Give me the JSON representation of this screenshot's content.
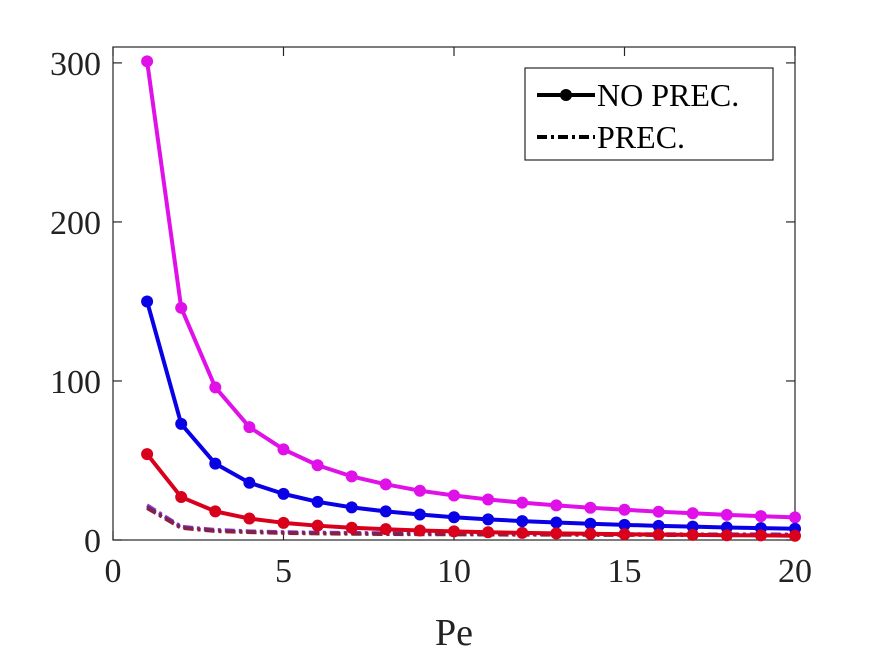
{
  "chart_data": {
    "type": "line",
    "title": "",
    "xlabel": "Pe",
    "ylabel": "",
    "xlim": [
      0,
      20
    ],
    "ylim": [
      0,
      310
    ],
    "xticks": [
      0,
      5,
      10,
      15,
      20
    ],
    "yticks": [
      0,
      100,
      200,
      300
    ],
    "xtick_labels": [
      "0",
      "5",
      "10",
      "15",
      "20"
    ],
    "ytick_labels": [
      "0",
      "100",
      "200",
      "300"
    ],
    "x": [
      1,
      2,
      3,
      4,
      5,
      6,
      7,
      8,
      9,
      10,
      11,
      12,
      13,
      14,
      15,
      16,
      17,
      18,
      19,
      20
    ],
    "series": [
      {
        "name": "magenta NO PREC.",
        "style": "solid-marker",
        "color": "#e010e8",
        "values": [
          301,
          146,
          96,
          71,
          57,
          47,
          40,
          35,
          31,
          28,
          25.5,
          23.5,
          21.8,
          20.3,
          19,
          17.8,
          16.8,
          15.8,
          15,
          14.2
        ]
      },
      {
        "name": "blue NO PREC.",
        "style": "solid-marker",
        "color": "#0a00e6",
        "values": [
          150,
          73,
          48,
          36,
          29,
          24,
          20.5,
          18,
          16,
          14.3,
          13,
          11.9,
          11,
          10.2,
          9.5,
          8.9,
          8.4,
          7.9,
          7.5,
          7.1
        ]
      },
      {
        "name": "red NO PREC.",
        "style": "solid-marker",
        "color": "#d8001a",
        "values": [
          54,
          27,
          18,
          13.5,
          10.8,
          9,
          7.7,
          6.8,
          6,
          5.4,
          4.9,
          4.5,
          4.2,
          3.9,
          3.6,
          3.4,
          3.2,
          3,
          2.9,
          2.7
        ]
      },
      {
        "name": "magenta PREC.",
        "style": "dashdot",
        "color": "#a040c0",
        "values": [
          22,
          8.5,
          6.5,
          5.6,
          5.1,
          4.8,
          4.6,
          4.4,
          4.3,
          4.2,
          4.1,
          4.0,
          3.9,
          3.9,
          3.8,
          3.8,
          3.7,
          3.7,
          3.7,
          3.6
        ]
      },
      {
        "name": "blue PREC.",
        "style": "dashdot",
        "color": "#5030a0",
        "values": [
          21,
          8,
          6,
          5.2,
          4.7,
          4.4,
          4.2,
          4.0,
          3.9,
          3.8,
          3.7,
          3.6,
          3.6,
          3.5,
          3.5,
          3.4,
          3.4,
          3.4,
          3.3,
          3.3
        ]
      },
      {
        "name": "red PREC.",
        "style": "dashdot",
        "color": "#8a2040",
        "values": [
          20,
          7.5,
          5.5,
          4.8,
          4.3,
          4.0,
          3.8,
          3.6,
          3.5,
          3.4,
          3.3,
          3.2,
          3.2,
          3.1,
          3.1,
          3.0,
          3.0,
          3.0,
          2.9,
          2.9
        ]
      }
    ],
    "legend": {
      "position": "top-right",
      "entries": [
        {
          "label": "NO PREC.",
          "style": "solid-marker",
          "color": "#000000"
        },
        {
          "label": "PREC.",
          "style": "dashdot",
          "color": "#000000"
        }
      ]
    },
    "grid": false
  }
}
